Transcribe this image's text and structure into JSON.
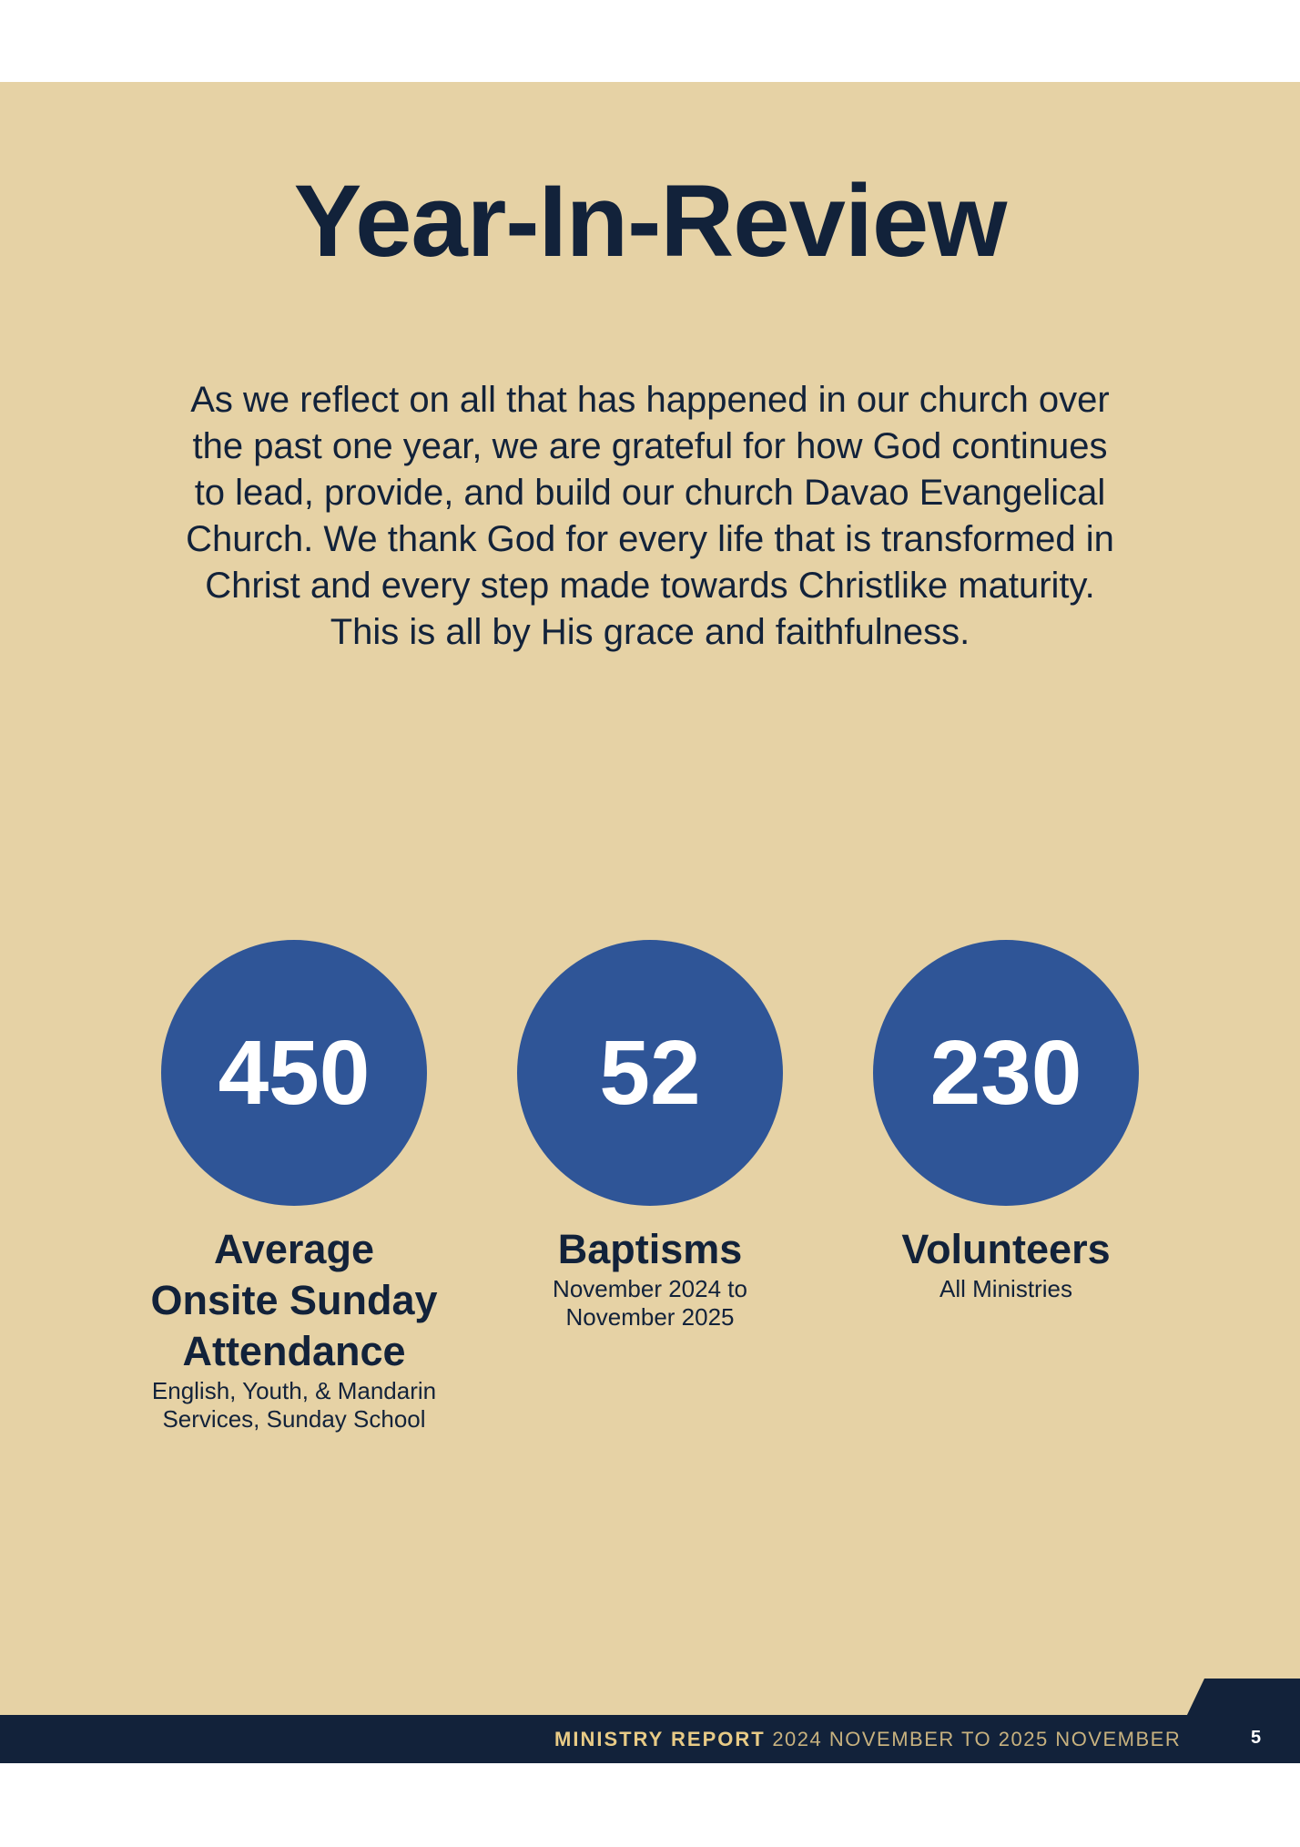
{
  "title": "Year-In-Review",
  "intro_lines": [
    "As we reflect on all that has happened in our church over",
    "the past one year, we are grateful for how God continues",
    "to lead, provide, and build our church Davao Evangelical",
    "Church. We thank God for every life that is transformed in",
    "Christ and every step made towards Christlike maturity.",
    "This is all by His grace and faithfulness."
  ],
  "stats": [
    {
      "value": "450",
      "label_lines": [
        "Average",
        "Onsite Sunday",
        "Attendance"
      ],
      "sub_lines": [
        "English, Youth, & Mandarin",
        "Services, Sunday School"
      ]
    },
    {
      "value": "52",
      "label_lines": [
        "Baptisms"
      ],
      "sub_lines": [
        "November 2024 to",
        "November 2025"
      ]
    },
    {
      "value": "230",
      "label_lines": [
        "Volunteers"
      ],
      "sub_lines": [
        "All Ministries"
      ]
    }
  ],
  "footer": {
    "report_label": "MINISTRY REPORT",
    "period": "2024 NOVEMBER TO 2025 NOVEMBER",
    "page_number": "5"
  },
  "colors": {
    "background": "#e6d2a5",
    "navy": "#12223a",
    "circle_blue": "#2f5597",
    "footer_gold": "#e8cb86"
  }
}
